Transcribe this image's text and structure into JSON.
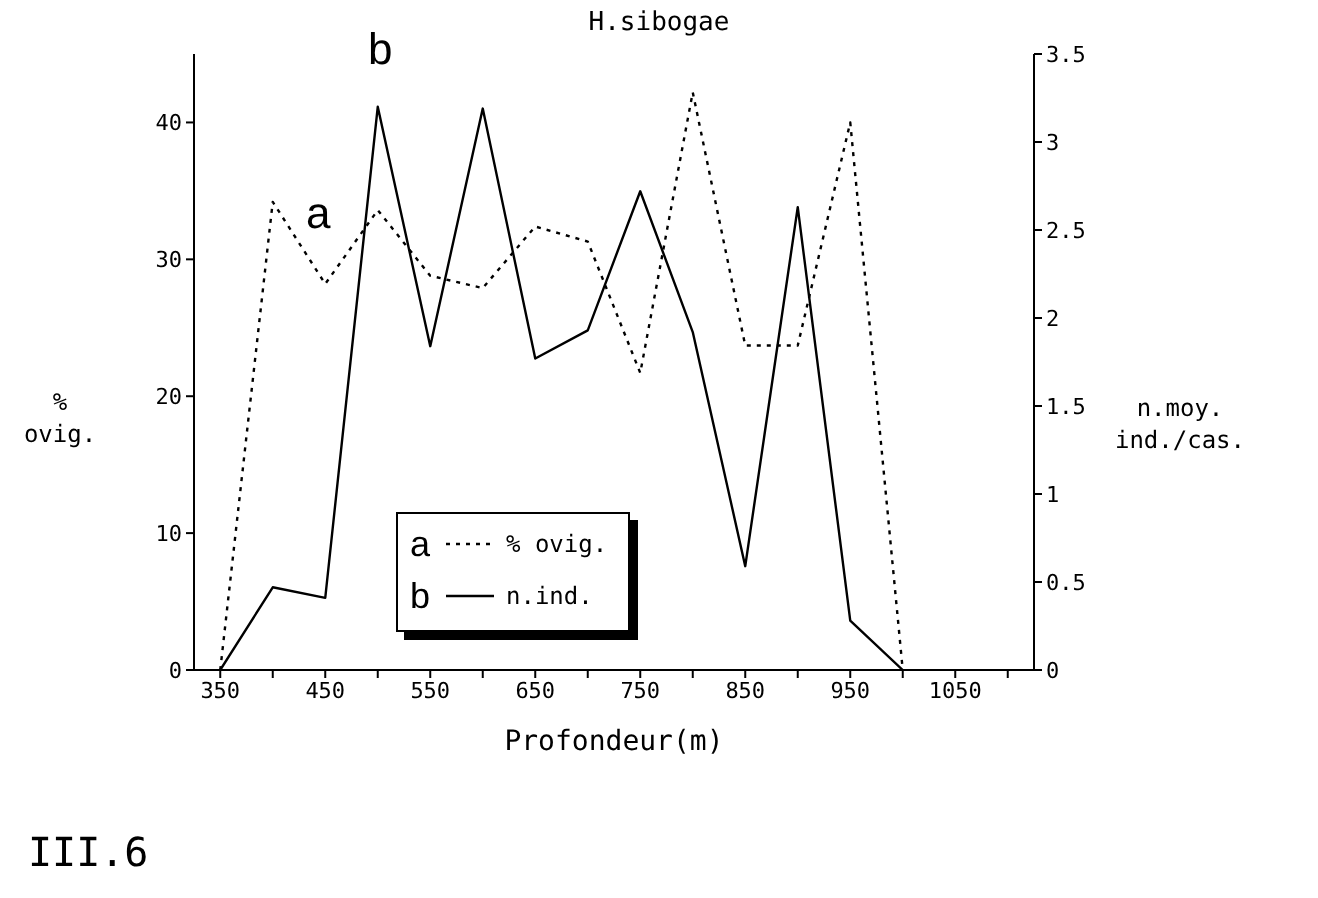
{
  "chart_data": {
    "type": "line",
    "title": "H.sibogae",
    "xlabel": "Profondeur(m)",
    "ylabel": "% ovig.",
    "y2label": "n.moy. ind./cas.",
    "x": [
      350,
      400,
      450,
      500,
      550,
      600,
      650,
      700,
      750,
      800,
      850,
      900,
      950,
      1000
    ],
    "series": [
      {
        "name": "% ovig.",
        "color": "#000000",
        "line_style": "dotted",
        "values": [
          0,
          34.2,
          28.2,
          33.6,
          28.8,
          27.9,
          32.4,
          31.3,
          21.7,
          42.2,
          23.7,
          23.7,
          40,
          0
        ]
      },
      {
        "name": "n.ind.",
        "color": "#000000",
        "line_style": "solid",
        "axis": "y2",
        "values": [
          0,
          0.47,
          0.41,
          3.2,
          1.84,
          3.19,
          1.77,
          1.93,
          2.72,
          1.92,
          0.59,
          2.63,
          0.28,
          0
        ]
      }
    ],
    "xlim": [
      325,
      1125
    ],
    "xticks": [
      350,
      {
        "value": 400,
        "label": null
      },
      450,
      {
        "value": 500,
        "label": null
      },
      550,
      {
        "value": 600,
        "label": null
      },
      650,
      {
        "value": 700,
        "label": null
      },
      750,
      {
        "value": 800,
        "label": null
      },
      850,
      {
        "value": 900,
        "label": null
      },
      950,
      {
        "value": 1000,
        "label": null
      },
      1050,
      {
        "value": 1100,
        "label": null
      }
    ],
    "ylim": [
      0,
      45
    ],
    "yticks": [
      0,
      10,
      20,
      30,
      40
    ],
    "y2lim": [
      0,
      3.5
    ],
    "y2ticks": [
      0,
      0.5,
      1,
      1.5,
      2,
      2.5,
      3,
      3.5
    ],
    "annotations": [
      "a",
      "b",
      "III.6"
    ],
    "legend": "bottom left",
    "grid": false,
    "marker": "none"
  }
}
